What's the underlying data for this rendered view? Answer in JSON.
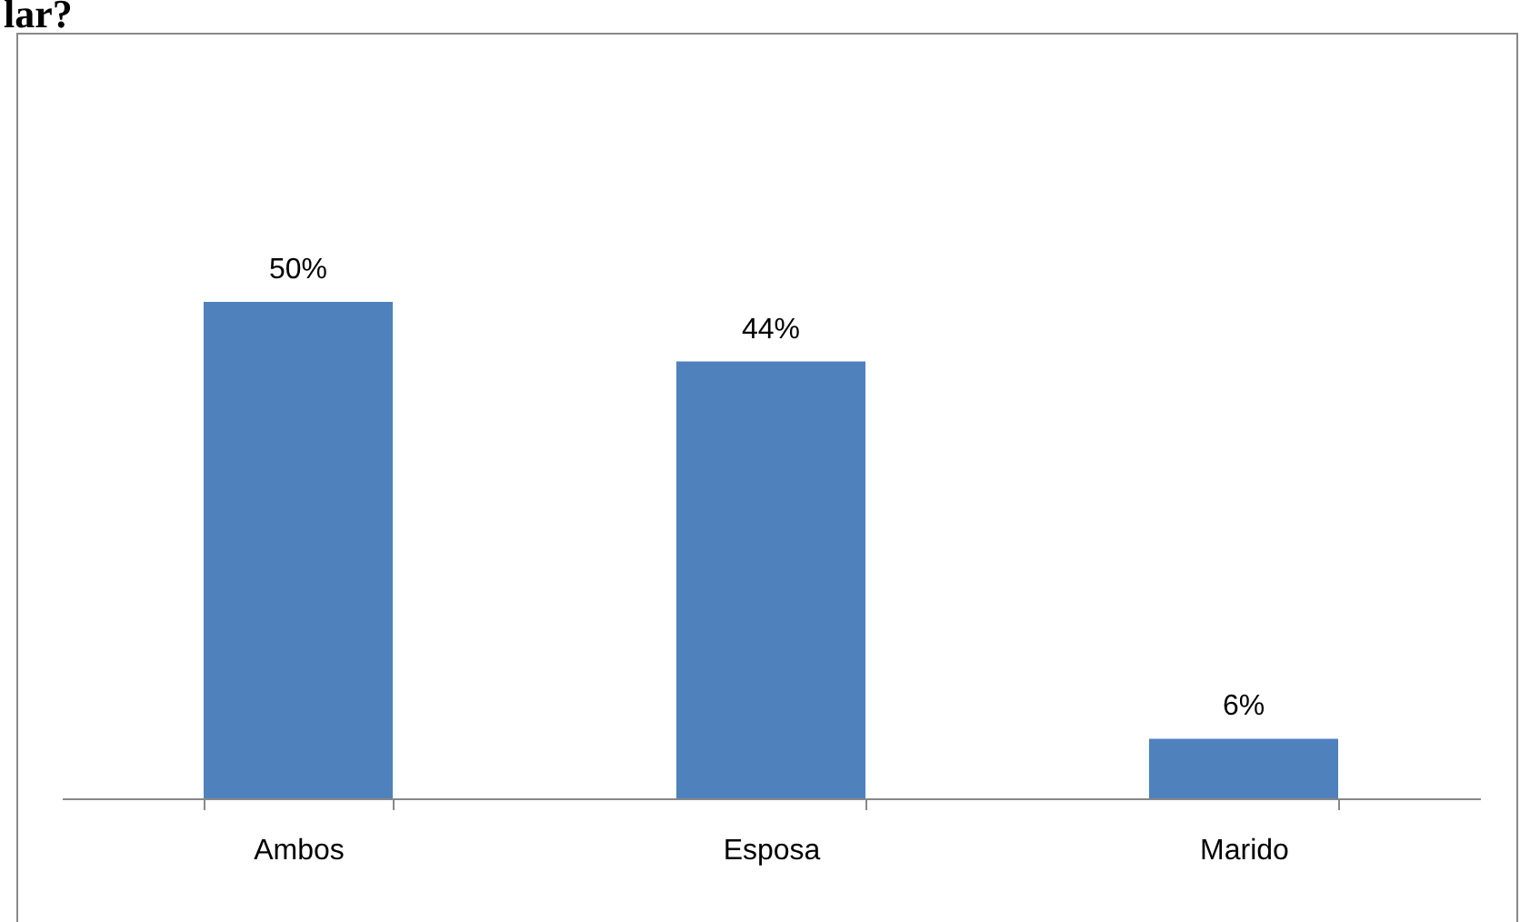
{
  "chart_data": {
    "type": "bar",
    "title": "lar?",
    "categories": [
      "Ambos",
      "Esposa",
      "Marido"
    ],
    "values": [
      50,
      44,
      6
    ],
    "value_labels": [
      "50%",
      "44%",
      "6%"
    ],
    "color": "#4f81bd"
  }
}
